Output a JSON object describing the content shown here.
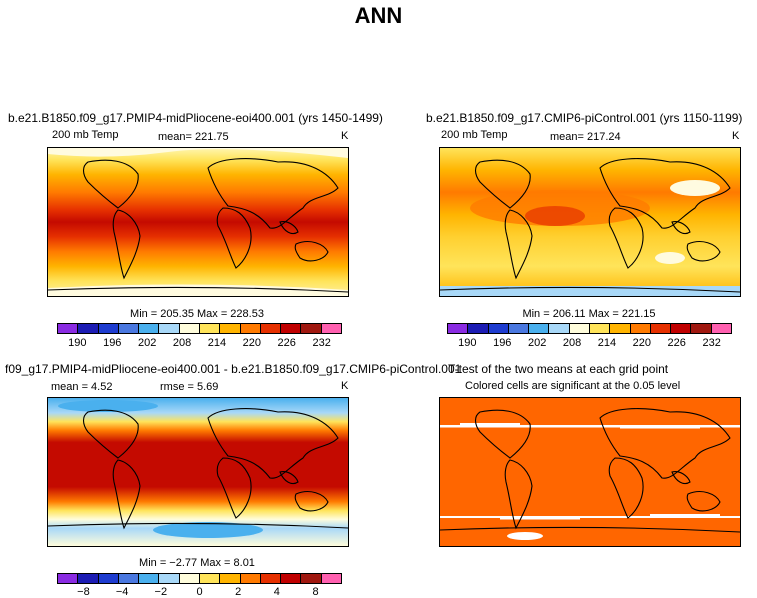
{
  "title": "ANN",
  "panels": {
    "top_left": {
      "title": "b.e21.B1850.f09_g17.PMIP4-midPliocene-eoi400.001 (yrs 1450-1499)",
      "variable": "200 mb Temp",
      "mean": "mean= 221.75",
      "units": "K",
      "minmax": "Min = 205.35 Max = 228.53"
    },
    "top_right": {
      "title": "b.e21.B1850.f09_g17.CMIP6-piControl.001 (yrs 1150-1199)",
      "variable": "200 mb Temp",
      "mean": "mean= 217.24",
      "units": "K",
      "minmax": "Min = 206.11 Max = 221.15"
    },
    "bottom_left": {
      "title": "f09_g17.PMIP4-midPliocene-eoi400.001 - b.e21.B1850.f09_g17.CMIP6-piControl.001",
      "mean": "mean =   4.52",
      "rmse": "rmse =   5.69",
      "units": "K",
      "minmax": "Min = −2.77 Max =   8.01"
    },
    "bottom_right": {
      "title": "T-test of the two means at each grid point",
      "subtitle": "Colored cells are significant at the 0.05 level"
    }
  },
  "colorbars": {
    "abs": {
      "colors": [
        "#8a2be2",
        "#1c1cb4",
        "#1e3cd0",
        "#4a78e0",
        "#4ab0ee",
        "#a8d8f8",
        "#fffddc",
        "#ffe45a",
        "#ffb400",
        "#ff7a00",
        "#e63000",
        "#c00000",
        "#a01810",
        "#ff60b0"
      ],
      "labels": [
        "190",
        "196",
        "202",
        "208",
        "214",
        "220",
        "226",
        "232"
      ]
    },
    "diff": {
      "colors": [
        "#8a2be2",
        "#1c1cb4",
        "#1e3cd0",
        "#4a78e0",
        "#4ab0ee",
        "#a8d8f8",
        "#fffddc",
        "#ffe45a",
        "#ffb400",
        "#ff7a00",
        "#e63000",
        "#c00000",
        "#a01810",
        "#ff60b0"
      ],
      "labels": [
        "−8",
        "−4",
        "−2",
        "0",
        "2",
        "4",
        "8"
      ]
    }
  },
  "colors": {
    "ttest_fill": "#ff6600",
    "ttest_nonsig": "#ffffff",
    "coast": "#000000"
  }
}
